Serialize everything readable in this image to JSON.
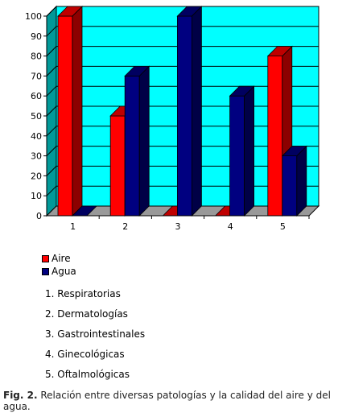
{
  "chart_data": {
    "type": "bar",
    "categories": [
      "1",
      "2",
      "3",
      "4",
      "5"
    ],
    "series": [
      {
        "name": "Aire",
        "color": "#ff0000",
        "values": [
          100,
          50,
          0,
          0,
          80
        ]
      },
      {
        "name": "Agua",
        "color": "#000080",
        "values": [
          0,
          70,
          100,
          60,
          30
        ]
      }
    ],
    "ylim": [
      0,
      100
    ],
    "yticks": [
      "0",
      "10",
      "20",
      "30",
      "40",
      "50",
      "60",
      "70",
      "80",
      "90",
      "100"
    ],
    "grid": true,
    "plot_background": "#00ffff",
    "legend_position": "bottom-left"
  },
  "category_list": [
    "1. Respiratorias",
    "2. Dermatologías",
    "3. Gastrointestinales",
    "4. Ginecológicas",
    "5. Oftalmológicas"
  ],
  "caption": {
    "label": "Fig. 2.",
    "text": " Relación entre diversas patologías y la calidad del aire y del agua."
  }
}
